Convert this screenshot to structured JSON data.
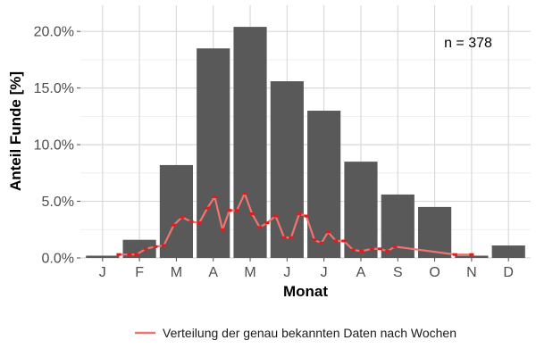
{
  "chart_data": {
    "type": "bar",
    "title": "",
    "xlabel": "Monat",
    "ylabel": "Anteil Funde [%]",
    "categories": [
      "J",
      "F",
      "M",
      "A",
      "M",
      "J",
      "J",
      "A",
      "S",
      "O",
      "N",
      "D"
    ],
    "values": [
      0.2,
      1.6,
      8.2,
      18.5,
      20.4,
      15.6,
      13.0,
      8.5,
      5.6,
      4.5,
      0.2,
      1.1
    ],
    "y_ticks": [
      "0.0%",
      "5.0%",
      "10.0%",
      "15.0%",
      "20.0%"
    ],
    "y_tick_values": [
      0,
      5,
      10,
      15,
      20
    ],
    "ylim": [
      0,
      22.3
    ],
    "bar_color": "#595959",
    "grid": true,
    "annotation": "n = 378",
    "line_series": {
      "name": "Verteilung der genau bekannten Daten nach Wochen",
      "color": "#f07470",
      "marker_color": "#e41a1c",
      "points": [
        [
          1.44,
          0.3
        ],
        [
          1.73,
          0.3
        ],
        [
          1.92,
          0.3
        ],
        [
          2.17,
          0.8
        ],
        [
          2.43,
          1.0
        ],
        [
          2.66,
          1.1
        ],
        [
          2.93,
          2.9
        ],
        [
          3.15,
          3.6
        ],
        [
          3.4,
          3.2
        ],
        [
          3.62,
          3.1
        ],
        [
          3.84,
          4.4
        ],
        [
          4.04,
          5.4
        ],
        [
          4.25,
          2.5
        ],
        [
          4.44,
          4.2
        ],
        [
          4.64,
          4.2
        ],
        [
          4.85,
          5.7
        ],
        [
          5.05,
          3.9
        ],
        [
          5.26,
          2.7
        ],
        [
          5.46,
          3.1
        ],
        [
          5.69,
          3.7
        ],
        [
          5.92,
          1.8
        ],
        [
          6.11,
          1.8
        ],
        [
          6.33,
          3.9
        ],
        [
          6.52,
          3.7
        ],
        [
          6.74,
          1.6
        ],
        [
          6.93,
          1.3
        ],
        [
          7.11,
          2.3
        ],
        [
          7.32,
          1.5
        ],
        [
          7.54,
          1.5
        ],
        [
          7.79,
          0.7
        ],
        [
          8.02,
          0.6
        ],
        [
          8.3,
          0.8
        ],
        [
          8.52,
          0.8
        ],
        [
          8.72,
          0.6
        ],
        [
          8.92,
          1.0
        ],
        [
          10.55,
          0.3
        ],
        [
          11.0,
          0.3
        ]
      ]
    },
    "legend": {
      "placement": "bottom",
      "label": "Verteilung der genau bekannten Daten nach Wochen"
    }
  }
}
